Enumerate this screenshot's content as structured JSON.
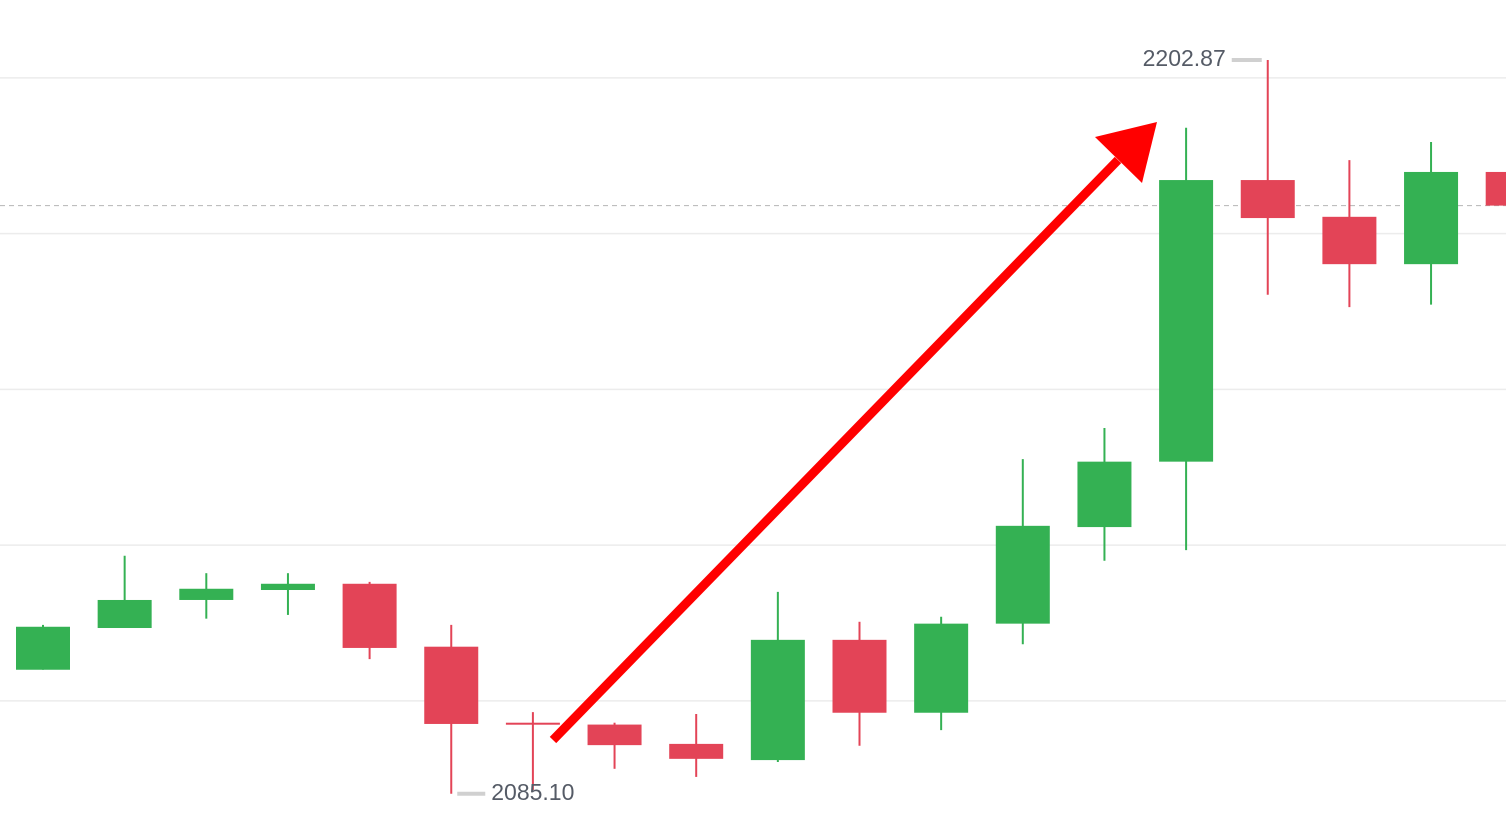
{
  "chart_data": {
    "type": "candlestick",
    "categories": [
      null,
      null,
      null,
      null,
      null,
      null,
      null,
      null,
      null,
      null,
      null,
      null,
      null,
      null,
      null,
      null,
      null,
      null,
      null
    ],
    "open": [
      2105.0,
      2111.7,
      2116.2,
      2117.8,
      2118.8,
      2108.7,
      2096.5,
      2096.2,
      2093.1,
      2090.5,
      2109.8,
      2098.1,
      2112.4,
      2127.9,
      2138.4,
      2183.6,
      2177.7,
      2170.1,
      2184.9
    ],
    "high": [
      2112.2,
      2123.3,
      2120.5,
      2120.5,
      2119.1,
      2112.2,
      2098.2,
      2096.5,
      2097.9,
      2117.5,
      2112.7,
      2113.5,
      2138.8,
      2143.8,
      2192.0,
      2202.87,
      2186.8,
      2189.7,
      2184.9
    ],
    "low": [
      2105.0,
      2111.7,
      2113.2,
      2113.8,
      2106.7,
      2085.1,
      2085.7,
      2089.1,
      2087.8,
      2090.2,
      2092.8,
      2095.3,
      2109.1,
      2122.5,
      2124.2,
      2165.2,
      2163.2,
      2163.6,
      2179.5
    ],
    "close": [
      2111.9,
      2116.2,
      2118.0,
      2118.8,
      2108.5,
      2096.3,
      2096.2,
      2092.9,
      2090.7,
      2109.8,
      2098.1,
      2112.4,
      2128.1,
      2138.4,
      2183.6,
      2177.5,
      2170.1,
      2184.9,
      2179.5
    ],
    "up_color": "#34b153",
    "down_color": "#e34457",
    "ylim": [
      2079.6,
      2212.5
    ],
    "yticks": [
      2100,
      2125,
      2150,
      2175,
      2200
    ],
    "grid": true,
    "last_price_line": true,
    "annotations": [
      {
        "value": 2202.87,
        "label": "2202.87"
      },
      {
        "value": 2085.1,
        "label": "2085.10"
      }
    ]
  }
}
